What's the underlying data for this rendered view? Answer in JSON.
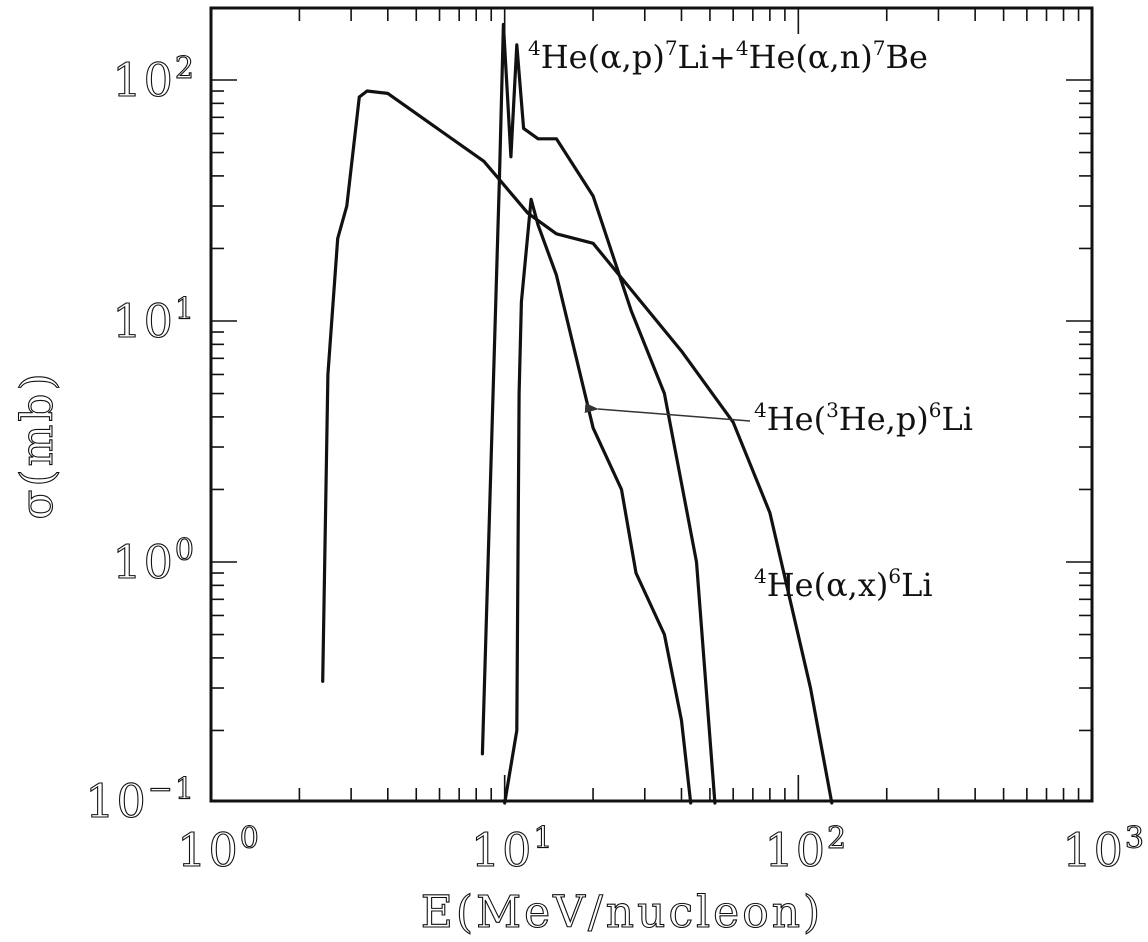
{
  "chart_data": {
    "type": "line",
    "title": "",
    "xlabel": "E(MeV/nucleon)",
    "ylabel": "σ(mb)",
    "x_scale": "log",
    "y_scale": "log",
    "xlim": [
      1,
      1000
    ],
    "ylim": [
      0.1,
      200
    ],
    "x_ticks": [
      {
        "base": "10",
        "exp": "0",
        "value": 1
      },
      {
        "base": "10",
        "exp": "1",
        "value": 10
      },
      {
        "base": "10",
        "exp": "2",
        "value": 100
      },
      {
        "base": "10",
        "exp": "3",
        "value": 1000
      }
    ],
    "y_ticks": [
      {
        "base": "10",
        "exp": "−1",
        "value": 0.1
      },
      {
        "base": "10",
        "exp": "0",
        "value": 1
      },
      {
        "base": "10",
        "exp": "1",
        "value": 10
      },
      {
        "base": "10",
        "exp": "2",
        "value": 100
      }
    ],
    "grid": false,
    "series": [
      {
        "x": [
          2.4,
          2.5,
          2.7,
          2.9,
          3.2,
          3.4,
          4.0,
          6.0,
          8.5,
          12.0,
          15.0,
          20.0,
          30.0,
          40.0,
          60.0,
          80.0,
          110.0,
          130.0
        ],
        "y": [
          0.32,
          6.0,
          22.0,
          30.0,
          85.0,
          90.0,
          88.0,
          62.0,
          46.0,
          28.0,
          23.0,
          21.0,
          11.5,
          7.5,
          3.8,
          1.6,
          0.3,
          0.1
        ]
      },
      {
        "x": [
          8.4,
          9.6,
          9.9,
          10.2,
          10.5,
          11.0,
          11.6,
          13.0,
          15.0,
          20.0,
          27.0,
          35.0,
          45.0,
          52.0
        ],
        "y": [
          0.16,
          40.0,
          170.0,
          90.0,
          48.0,
          140.0,
          63.0,
          57.0,
          57.0,
          33.0,
          11.0,
          5.0,
          1.0,
          0.1
        ]
      },
      {
        "x": [
          10.0,
          11.0,
          11.2,
          11.4,
          12.3,
          13.0,
          15.0,
          20.0,
          25.0,
          28.0,
          35.0,
          40.0,
          43.0
        ],
        "y": [
          0.1,
          0.2,
          5.0,
          12.0,
          32.0,
          25.0,
          15.5,
          3.6,
          2.0,
          0.9,
          0.5,
          0.22,
          0.1
        ]
      }
    ],
    "annotations": [
      {
        "parts": [
          {
            "t": "4",
            "sup": true
          },
          {
            "t": "He(α,p)",
            "sup": false
          },
          {
            "t": "7",
            "sup": true
          },
          {
            "t": "Li+",
            "sup": false
          },
          {
            "t": "4",
            "sup": true
          },
          {
            "t": "He(α,n)",
            "sup": false
          },
          {
            "t": "7",
            "sup": true
          },
          {
            "t": "Be",
            "sup": false
          }
        ]
      },
      {
        "parts": [
          {
            "t": "4",
            "sup": true
          },
          {
            "t": "He(",
            "sup": false
          },
          {
            "t": "3",
            "sup": true
          },
          {
            "t": "He,p)",
            "sup": false
          },
          {
            "t": "6",
            "sup": true
          },
          {
            "t": "Li",
            "sup": false
          }
        ]
      },
      {
        "parts": [
          {
            "t": "4",
            "sup": true
          },
          {
            "t": "He(α,x)",
            "sup": false
          },
          {
            "t": "6",
            "sup": true
          },
          {
            "t": "Li",
            "sup": false
          }
        ]
      }
    ]
  }
}
